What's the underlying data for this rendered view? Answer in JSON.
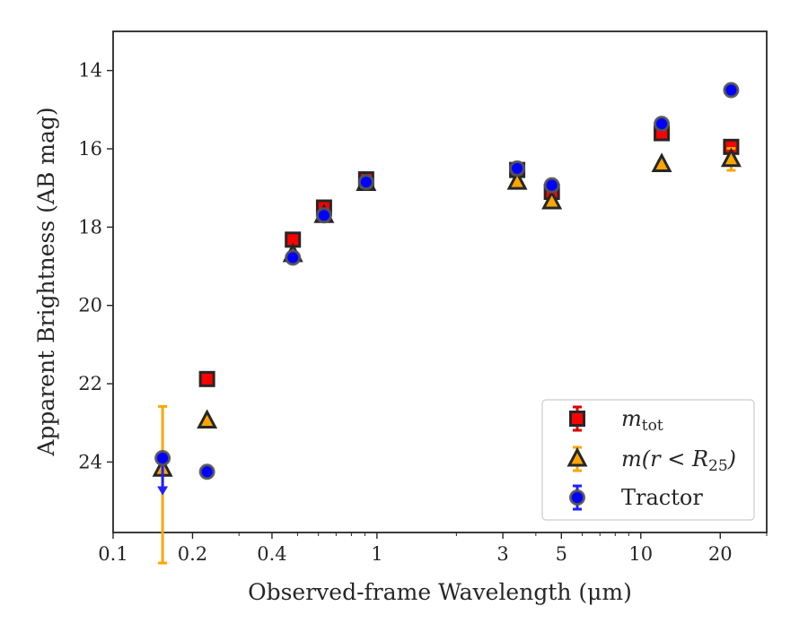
{
  "chart_data": {
    "type": "scatter",
    "xlabel": "Observed-frame Wavelength (μm)",
    "ylabel": "Apparent Brightness (AB mag)",
    "xscale": "log",
    "xlim": [
      0.1,
      30
    ],
    "ylim": [
      25.8,
      13.0
    ],
    "y_inverted": true,
    "x_ticks": [
      0.1,
      0.2,
      0.4,
      1,
      3,
      5,
      10,
      20
    ],
    "x_tick_labels": [
      "0.1",
      "0.2",
      "0.4",
      "1",
      "3",
      "5",
      "10",
      "20"
    ],
    "y_ticks": [
      14,
      16,
      18,
      20,
      22,
      24
    ],
    "y_tick_labels": [
      "14",
      "16",
      "18",
      "20",
      "22",
      "24"
    ],
    "legend_position": "lower-right",
    "grid": false,
    "series": [
      {
        "name": "m_tot",
        "legend_label": "m",
        "legend_sub": "tot",
        "marker": "square",
        "color": "#ff0000",
        "edge_color": "#262626",
        "errbar_color": "#e00000",
        "points": [
          {
            "x": 0.227,
            "y": 21.88,
            "err": 0.05
          },
          {
            "x": 0.48,
            "y": 18.32,
            "err": 0.05
          },
          {
            "x": 0.63,
            "y": 17.5,
            "err": 0.05
          },
          {
            "x": 0.91,
            "y": 16.78,
            "err": 0.05
          },
          {
            "x": 3.4,
            "y": 16.54,
            "err": 0.05
          },
          {
            "x": 4.6,
            "y": 17.1,
            "err": 0.06
          },
          {
            "x": 12.0,
            "y": 15.6,
            "err": 0.06
          },
          {
            "x": 22.0,
            "y": 15.95,
            "err": 0.06
          }
        ]
      },
      {
        "name": "m(r<R_25)",
        "legend_label": "m(r < R",
        "legend_sub": "25",
        "legend_suffix": ")",
        "marker": "triangle",
        "color": "#ffa500",
        "edge_color": "#262626",
        "errbar_color": "#ffa500",
        "points": [
          {
            "x": 0.154,
            "y": 24.18,
            "err_low": 2.4,
            "err_high": 1.6
          },
          {
            "x": 0.227,
            "y": 22.95,
            "err": 0.05
          },
          {
            "x": 0.48,
            "y": 18.7,
            "err": 0.05
          },
          {
            "x": 0.63,
            "y": 17.7,
            "err": 0.05
          },
          {
            "x": 0.91,
            "y": 16.88,
            "err": 0.05
          },
          {
            "x": 3.4,
            "y": 16.85,
            "err": 0.05
          },
          {
            "x": 4.6,
            "y": 17.35,
            "err": 0.05
          },
          {
            "x": 12.0,
            "y": 16.4,
            "err": 0.08
          },
          {
            "x": 22.0,
            "y": 16.27,
            "err": 0.28
          }
        ]
      },
      {
        "name": "Tractor",
        "legend_label": "Tractor",
        "marker": "circle",
        "color": "#0000ff",
        "edge_color": "#555555",
        "errbar_color": "#2020ff",
        "points": [
          {
            "x": 0.154,
            "y": 23.9,
            "upper_limit": true,
            "arrow_to": 24.78
          },
          {
            "x": 0.227,
            "y": 24.25,
            "err": 0.05
          },
          {
            "x": 0.48,
            "y": 18.78,
            "err": 0.05
          },
          {
            "x": 0.63,
            "y": 17.7,
            "err": 0.05
          },
          {
            "x": 0.91,
            "y": 16.85,
            "err": 0.05
          },
          {
            "x": 3.4,
            "y": 16.5,
            "err": 0.05
          },
          {
            "x": 4.6,
            "y": 16.93,
            "err": 0.05
          },
          {
            "x": 12.0,
            "y": 15.36,
            "err": 0.05
          },
          {
            "x": 22.0,
            "y": 14.5,
            "err": 0.05
          }
        ]
      }
    ]
  }
}
